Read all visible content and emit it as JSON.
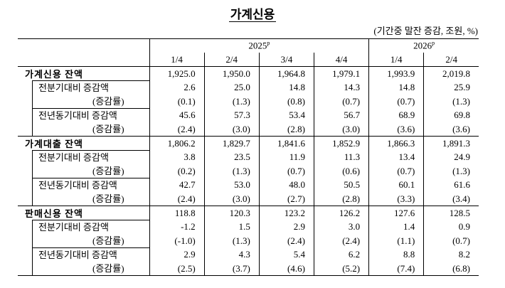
{
  "header": {
    "title": "가계신용",
    "unit": "(기간중 말잔 증감, 조원, %)",
    "years": [
      {
        "label": "2025",
        "sup": "p",
        "quarters": [
          "1/4",
          "2/4",
          "3/4",
          "4/4"
        ]
      },
      {
        "label": "2026",
        "sup": "p",
        "quarters": [
          "1/4",
          "2/4"
        ]
      }
    ]
  },
  "sections": [
    {
      "label": "가계신용 잔액",
      "values": [
        "1,925.0",
        "1,950.0",
        "1,964.8",
        "1,979.1",
        "1,993.9",
        "2,019.8"
      ],
      "rows": [
        {
          "label": "전분기대비 증감액",
          "values": [
            "2.6",
            "25.0",
            "14.8",
            "14.3",
            "14.8",
            "25.9"
          ]
        },
        {
          "label": "(증감률)",
          "values": [
            "(0.1)",
            "(1.3)",
            "(0.8)",
            "(0.7)",
            "(0.7)",
            "(1.3)"
          ]
        },
        {
          "label": "전년동기대비 증감액",
          "values": [
            "45.6",
            "57.3",
            "53.4",
            "56.7",
            "68.9",
            "69.8"
          ]
        },
        {
          "label": "(증감률)",
          "values": [
            "(2.4)",
            "(3.0)",
            "(2.8)",
            "(3.0)",
            "(3.6)",
            "(3.6)"
          ]
        }
      ]
    },
    {
      "label": "가계대출 잔액",
      "values": [
        "1,806.2",
        "1,829.7",
        "1,841.6",
        "1,852.9",
        "1,866.3",
        "1,891.3"
      ],
      "rows": [
        {
          "label": "전분기대비 증감액",
          "values": [
            "3.8",
            "23.5",
            "11.9",
            "11.3",
            "13.4",
            "24.9"
          ]
        },
        {
          "label": "(증감률)",
          "values": [
            "(0.2)",
            "(1.3)",
            "(0.7)",
            "(0.6)",
            "(0.7)",
            "(1.3)"
          ]
        },
        {
          "label": "전년동기대비 증감액",
          "values": [
            "42.7",
            "53.0",
            "48.0",
            "50.5",
            "60.1",
            "61.6"
          ]
        },
        {
          "label": "(증감률)",
          "values": [
            "(2.4)",
            "(3.0)",
            "(2.7)",
            "(2.8)",
            "(3.3)",
            "(3.4)"
          ]
        }
      ]
    },
    {
      "label": "판매신용 잔액",
      "values": [
        "118.8",
        "120.3",
        "123.2",
        "126.2",
        "127.6",
        "128.5"
      ],
      "rows": [
        {
          "label": "전분기대비 증감액",
          "values": [
            "-1.2",
            "1.5",
            "2.9",
            "3.0",
            "1.4",
            "0.9"
          ]
        },
        {
          "label": "(증감률)",
          "values": [
            "(-1.0)",
            "(1.3)",
            "(2.4)",
            "(2.4)",
            "(1.1)",
            "(0.7)"
          ]
        },
        {
          "label": "전년동기대비 증감액",
          "values": [
            "2.9",
            "4.3",
            "5.4",
            "6.2",
            "8.8",
            "8.2"
          ]
        },
        {
          "label": "(증감률)",
          "values": [
            "(2.5)",
            "(3.7)",
            "(4.6)",
            "(5.2)",
            "(7.4)",
            "(6.8)"
          ]
        }
      ]
    }
  ]
}
